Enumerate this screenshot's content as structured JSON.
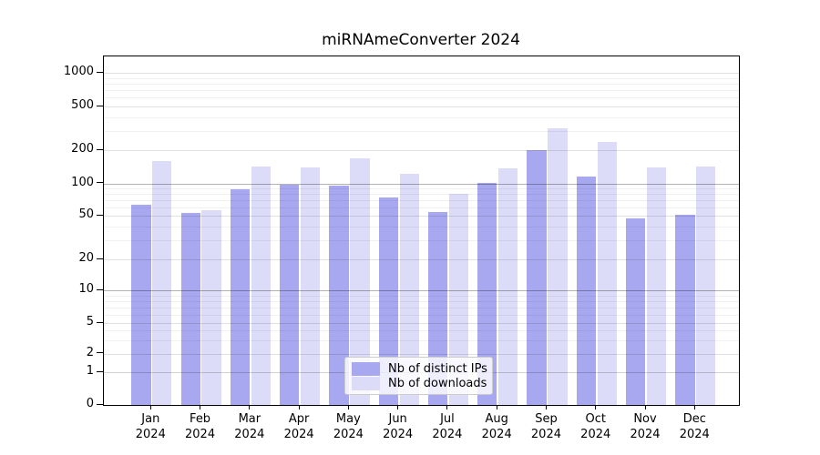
{
  "chart_data": {
    "type": "bar",
    "title": "miRNAmeConverter 2024",
    "categories": [
      "Jan",
      "Feb",
      "Mar",
      "Apr",
      "May",
      "Jun",
      "Jul",
      "Aug",
      "Sep",
      "Oct",
      "Nov",
      "Dec"
    ],
    "x_tick_second_line": "2024",
    "series": [
      {
        "name": "Nb of distinct IPs",
        "color": "#a8a8f0",
        "values": [
          63,
          53,
          89,
          97,
          95,
          74,
          54,
          101,
          201,
          115,
          47,
          51
        ]
      },
      {
        "name": "Nb of downloads",
        "color": "#dcdcf8",
        "values": [
          158,
          56,
          142,
          141,
          168,
          123,
          80,
          136,
          316,
          238,
          141,
          143
        ]
      }
    ],
    "y_ticks": [
      0,
      1,
      2,
      5,
      10,
      20,
      50,
      100,
      200,
      500,
      1000
    ],
    "y_minor_gridlines": [
      3,
      4,
      6,
      7,
      8,
      9,
      30,
      40,
      60,
      70,
      80,
      90,
      300,
      400,
      600,
      700,
      800,
      900
    ],
    "y_scale": "symlog",
    "ylim_top_value": 1500,
    "grid": true,
    "legend_position": "lower center"
  }
}
